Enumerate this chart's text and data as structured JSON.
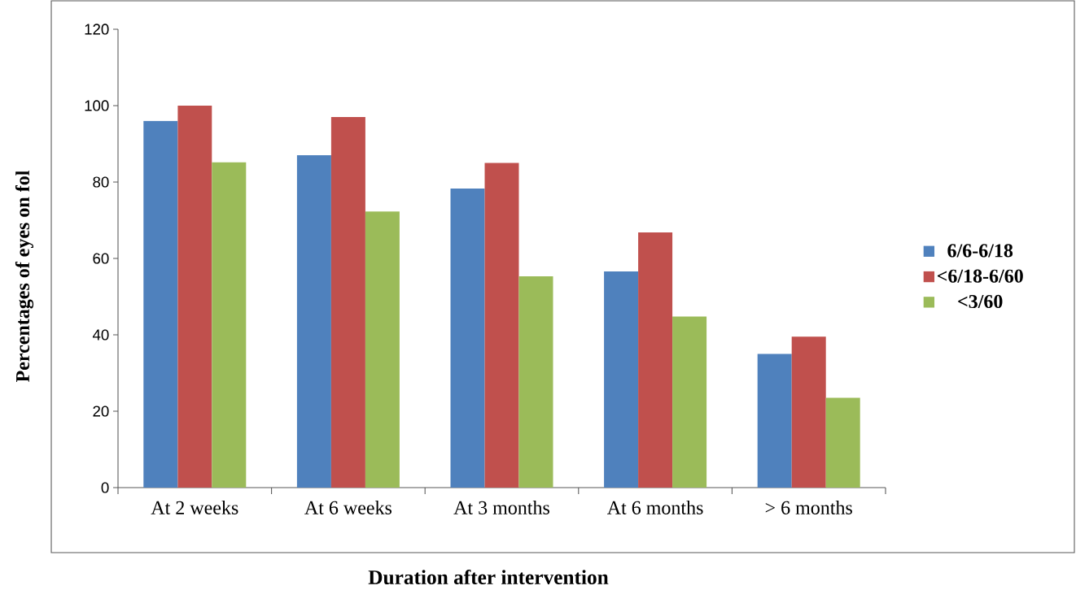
{
  "chart_data": {
    "type": "bar",
    "xlabel": "Duration after intervention",
    "ylabel": "Percentages of eyes on fol",
    "categories": [
      "At 2 weeks",
      "At 6 weeks",
      "At 3 months",
      "At 6 months",
      "> 6 months"
    ],
    "series": [
      {
        "name": "6/6-6/18",
        "color": "#4f81bd",
        "values": [
          96,
          87,
          78.3,
          56.6,
          35
        ]
      },
      {
        "name": "<6/18-6/60",
        "color": "#c0504d",
        "values": [
          100,
          97,
          85,
          66.8,
          39.5
        ]
      },
      {
        "name": "<3/60",
        "color": "#9bbb59",
        "values": [
          85.2,
          72.3,
          55.3,
          44.8,
          23.5
        ]
      }
    ],
    "ylim": [
      0,
      120
    ],
    "yticks": [
      0,
      20,
      40,
      60,
      80,
      100,
      120
    ],
    "grid": false,
    "legend": "right"
  }
}
